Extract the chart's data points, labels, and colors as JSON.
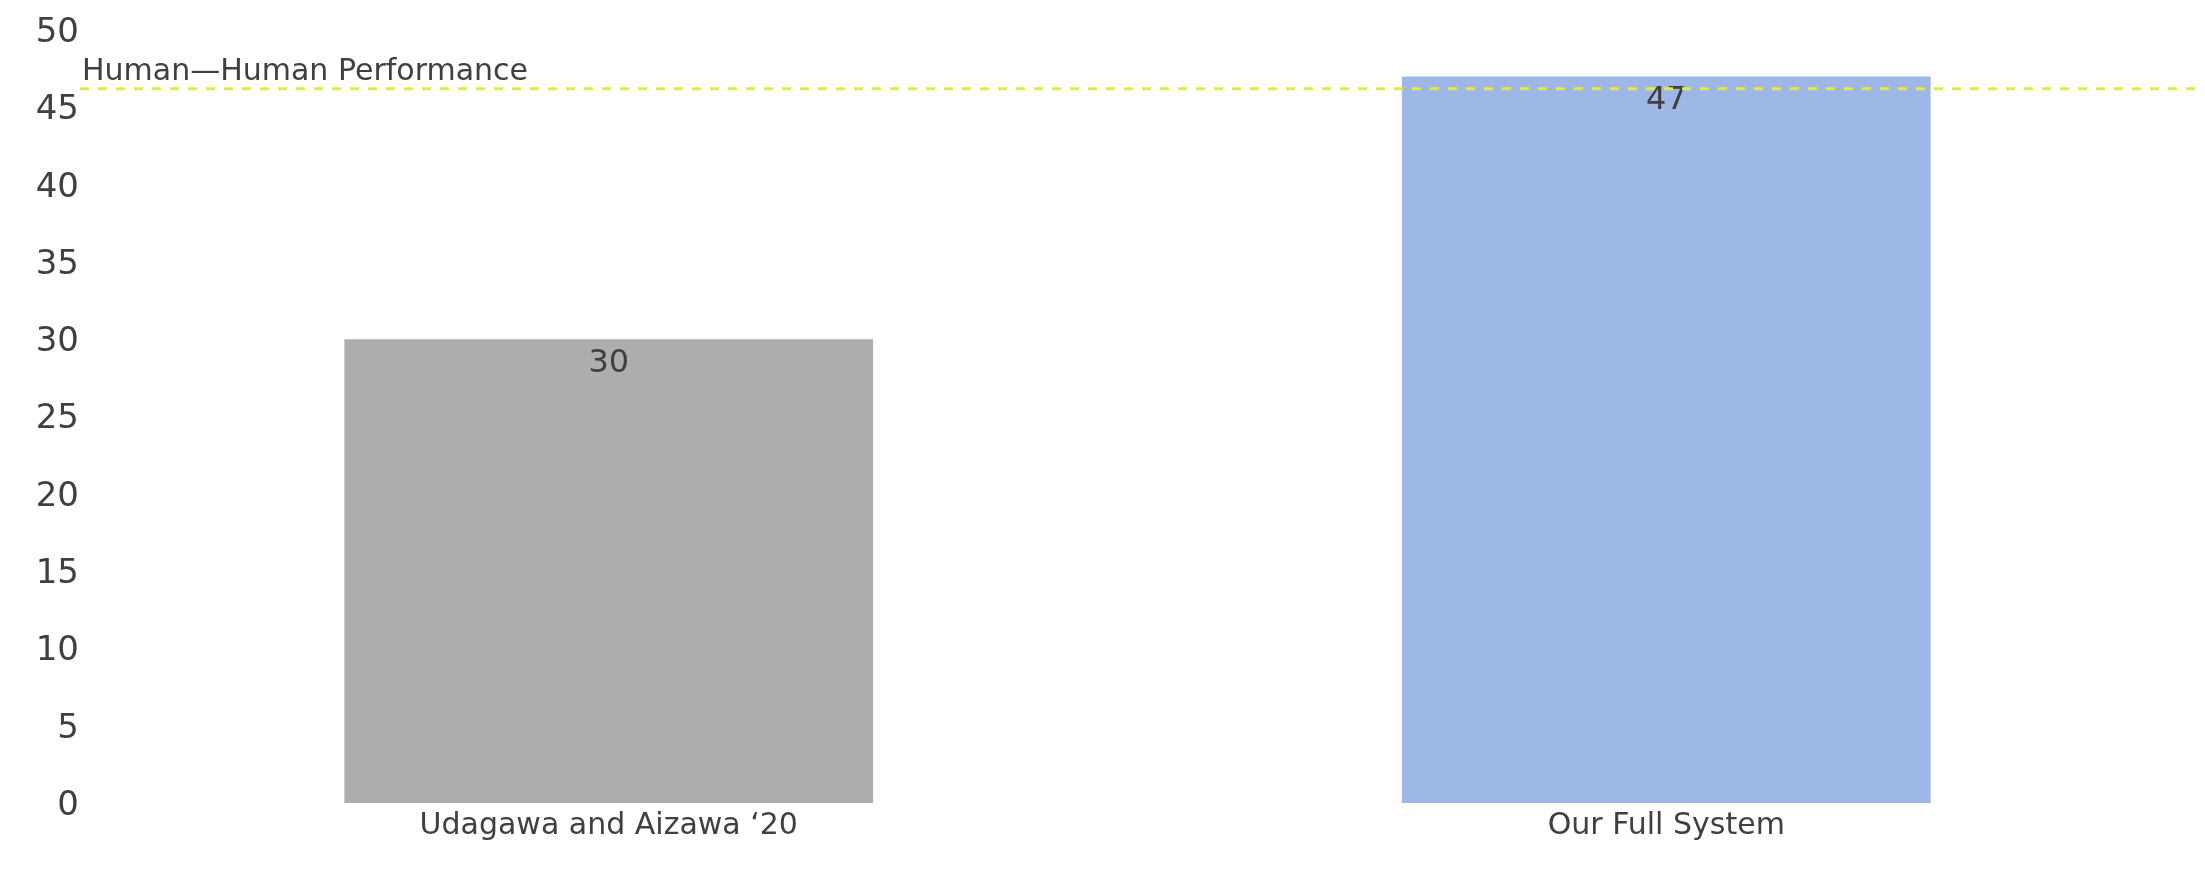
{
  "chart_data": {
    "type": "bar",
    "categories": [
      "Udagawa and Aizawa ‘20",
      "Our Full System"
    ],
    "values": [
      30,
      47
    ],
    "colors": [
      "#adadad",
      "#9db8e6"
    ],
    "data_labels": true,
    "ylim": [
      0,
      50
    ],
    "yticks": [
      0,
      5,
      10,
      15,
      20,
      25,
      30,
      35,
      40,
      45,
      50
    ],
    "ref_lines": [
      {
        "axis": "y",
        "value": 46.2,
        "label": "Human—Human Performance",
        "color": "#e3e84a",
        "line_style": "dashed"
      }
    ]
  }
}
